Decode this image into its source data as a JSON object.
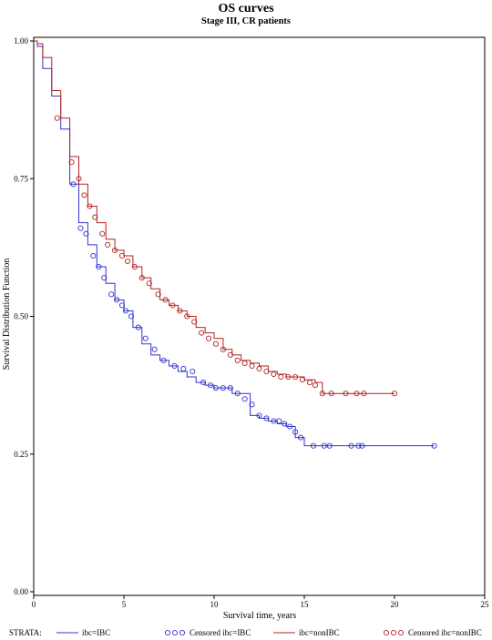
{
  "chart_data": {
    "type": "line",
    "subtype": "kaplan-meier",
    "title": "OS curves",
    "subtitle": "Stage III, CR patients",
    "xlabel": "Survival time, years",
    "ylabel": "Survival Distribution Function",
    "xlim": [
      0,
      25
    ],
    "ylim": [
      0,
      1
    ],
    "x_ticks": [
      "0",
      "5",
      "10",
      "15",
      "20",
      "25"
    ],
    "y_ticks": [
      "0.00",
      "0.25",
      "0.50",
      "0.75",
      "1.00"
    ],
    "grid": false,
    "legend_title": "STRATA:",
    "legend_position": "bottom",
    "legend": [
      {
        "label": "ibc=IBC",
        "kind": "line",
        "color": "#3333cc"
      },
      {
        "label": "Censored ibc=IBC",
        "kind": "marker",
        "color": "#3333cc"
      },
      {
        "label": "ibc=nonIBC",
        "kind": "line",
        "color": "#b22222"
      },
      {
        "label": "Censored ibc=nonIBC",
        "kind": "marker",
        "color": "#b22222"
      }
    ],
    "series": [
      {
        "name": "ibc=IBC",
        "color": "#3333cc",
        "x": [
          0,
          0.2,
          0.5,
          1.0,
          1.5,
          2.0,
          2.5,
          3.0,
          3.5,
          4.0,
          4.5,
          5.0,
          5.5,
          6.0,
          6.5,
          7.0,
          7.5,
          8.0,
          8.5,
          9.0,
          9.5,
          10.0,
          11.0,
          12.0,
          12.5,
          13.0,
          13.5,
          14.0,
          14.5,
          15.0,
          16.0,
          18.0,
          22.2
        ],
        "y": [
          1.0,
          0.99,
          0.95,
          0.9,
          0.84,
          0.74,
          0.67,
          0.63,
          0.59,
          0.56,
          0.53,
          0.51,
          0.48,
          0.45,
          0.43,
          0.42,
          0.41,
          0.4,
          0.39,
          0.38,
          0.375,
          0.37,
          0.36,
          0.32,
          0.315,
          0.31,
          0.305,
          0.3,
          0.28,
          0.265,
          0.265,
          0.265,
          0.265
        ],
        "censored_x": [
          2.2,
          2.6,
          2.9,
          3.3,
          3.6,
          3.9,
          4.3,
          4.6,
          4.9,
          5.1,
          5.4,
          5.8,
          6.2,
          6.7,
          7.2,
          7.8,
          8.3,
          8.8,
          9.4,
          9.8,
          10.1,
          10.5,
          10.9,
          11.3,
          11.7,
          12.1,
          12.5,
          12.9,
          13.3,
          13.6,
          13.9,
          14.2,
          14.5,
          14.8,
          15.5,
          16.1,
          16.4,
          17.6,
          18.0,
          18.2,
          22.2
        ],
        "censored_y": [
          0.74,
          0.66,
          0.65,
          0.61,
          0.59,
          0.57,
          0.54,
          0.53,
          0.52,
          0.51,
          0.5,
          0.48,
          0.46,
          0.44,
          0.42,
          0.41,
          0.405,
          0.4,
          0.38,
          0.375,
          0.37,
          0.37,
          0.37,
          0.36,
          0.35,
          0.34,
          0.32,
          0.315,
          0.31,
          0.31,
          0.305,
          0.3,
          0.29,
          0.28,
          0.265,
          0.265,
          0.265,
          0.265,
          0.265,
          0.265,
          0.265
        ]
      },
      {
        "name": "ibc=nonIBC",
        "color": "#b22222",
        "x": [
          0,
          0.2,
          0.5,
          1.0,
          1.5,
          2.0,
          2.5,
          3.0,
          3.5,
          4.0,
          4.5,
          5.0,
          5.5,
          6.0,
          6.5,
          7.0,
          7.5,
          8.0,
          8.5,
          9.0,
          9.5,
          10.0,
          10.5,
          11.0,
          11.5,
          12.0,
          12.5,
          13.0,
          13.5,
          14.0,
          15.0,
          15.6,
          16.0,
          17.0,
          18.0,
          20.0
        ],
        "y": [
          1.0,
          0.995,
          0.97,
          0.91,
          0.86,
          0.79,
          0.74,
          0.7,
          0.67,
          0.64,
          0.62,
          0.61,
          0.59,
          0.57,
          0.55,
          0.53,
          0.52,
          0.51,
          0.5,
          0.48,
          0.47,
          0.46,
          0.44,
          0.43,
          0.42,
          0.415,
          0.41,
          0.4,
          0.395,
          0.39,
          0.385,
          0.38,
          0.36,
          0.36,
          0.36,
          0.36
        ],
        "censored_x": [
          1.3,
          2.1,
          2.5,
          2.8,
          3.1,
          3.4,
          3.8,
          4.1,
          4.5,
          4.9,
          5.2,
          5.6,
          6.0,
          6.4,
          6.9,
          7.3,
          7.7,
          8.1,
          8.5,
          8.9,
          9.3,
          9.7,
          10.1,
          10.5,
          10.9,
          11.3,
          11.7,
          12.1,
          12.5,
          12.9,
          13.3,
          13.7,
          14.1,
          14.5,
          14.9,
          15.3,
          15.6,
          16.0,
          16.5,
          17.3,
          17.9,
          18.3,
          20.0
        ],
        "censored_y": [
          0.86,
          0.78,
          0.75,
          0.72,
          0.7,
          0.68,
          0.65,
          0.63,
          0.62,
          0.61,
          0.6,
          0.59,
          0.57,
          0.56,
          0.54,
          0.53,
          0.52,
          0.51,
          0.5,
          0.49,
          0.47,
          0.46,
          0.45,
          0.44,
          0.43,
          0.42,
          0.415,
          0.41,
          0.405,
          0.4,
          0.395,
          0.39,
          0.39,
          0.39,
          0.385,
          0.38,
          0.375,
          0.36,
          0.36,
          0.36,
          0.36,
          0.36,
          0.36
        ]
      }
    ]
  }
}
